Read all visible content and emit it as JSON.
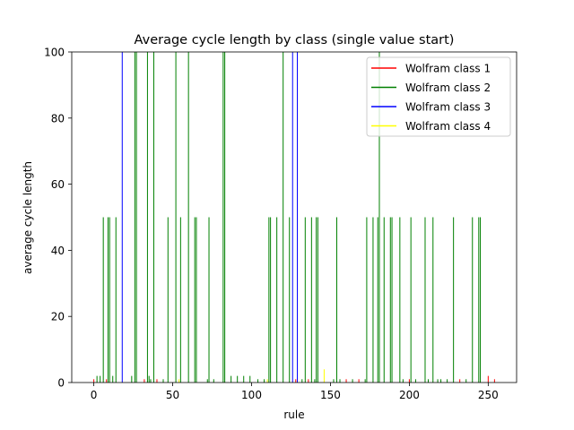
{
  "chart_data": {
    "type": "bar",
    "title": "Average cycle length by class (single value start)",
    "xlabel": "rule",
    "ylabel": "average cycle length",
    "xlim": [
      -14,
      268
    ],
    "ylim": [
      0,
      100
    ],
    "xticks": [
      0,
      50,
      100,
      150,
      200,
      250
    ],
    "yticks": [
      0,
      20,
      40,
      60,
      80,
      100
    ],
    "legend": {
      "position": "top-right",
      "entries": [
        {
          "label": "Wolfram class 1",
          "color": "#ff0000"
        },
        {
          "label": "Wolfram class 2",
          "color": "#008000"
        },
        {
          "label": "Wolfram class 3",
          "color": "#0000ff"
        },
        {
          "label": "Wolfram class 4",
          "color": "#ffff00"
        }
      ]
    },
    "series": [
      {
        "name": "Wolfram class 1",
        "color": "#ff0000",
        "points": [
          [
            0,
            1
          ],
          [
            8,
            1
          ],
          [
            32,
            1
          ],
          [
            40,
            1
          ],
          [
            128,
            1
          ],
          [
            136,
            1
          ],
          [
            160,
            1
          ],
          [
            168,
            1
          ],
          [
            200,
            1
          ],
          [
            232,
            1
          ],
          [
            250,
            2
          ],
          [
            254,
            1
          ]
        ]
      },
      {
        "name": "Wolfram class 2",
        "color": "#008000",
        "points": [
          [
            2,
            2
          ],
          [
            6,
            50
          ],
          [
            9,
            50
          ],
          [
            10,
            50
          ],
          [
            14,
            50
          ],
          [
            24,
            2
          ],
          [
            26,
            100
          ],
          [
            27,
            100
          ],
          [
            34,
            100
          ],
          [
            35,
            2
          ],
          [
            38,
            100
          ],
          [
            47,
            50
          ],
          [
            52,
            100
          ],
          [
            55,
            50
          ],
          [
            60,
            100
          ],
          [
            64,
            50
          ],
          [
            65,
            50
          ],
          [
            73,
            50
          ],
          [
            82,
            100
          ],
          [
            83,
            100
          ],
          [
            87,
            2
          ],
          [
            91,
            2
          ],
          [
            95,
            2
          ],
          [
            99,
            2
          ],
          [
            111,
            50
          ],
          [
            112,
            50
          ],
          [
            116,
            50
          ],
          [
            120,
            100
          ],
          [
            124,
            50
          ],
          [
            134,
            50
          ],
          [
            138,
            50
          ],
          [
            141,
            50
          ],
          [
            142,
            50
          ],
          [
            154,
            50
          ],
          [
            173,
            50
          ],
          [
            177,
            50
          ],
          [
            180,
            50
          ],
          [
            181,
            100
          ],
          [
            184,
            50
          ],
          [
            188,
            50
          ],
          [
            189,
            50
          ],
          [
            194,
            50
          ],
          [
            201,
            50
          ],
          [
            210,
            50
          ],
          [
            215,
            50
          ],
          [
            228,
            50
          ],
          [
            240,
            50
          ],
          [
            244,
            50
          ],
          [
            245,
            50
          ],
          [
            4,
            2
          ],
          [
            12,
            2
          ],
          [
            36,
            1
          ],
          [
            44,
            1
          ],
          [
            72,
            1
          ],
          [
            76,
            1
          ],
          [
            104,
            1
          ],
          [
            108,
            1
          ],
          [
            132,
            1
          ],
          [
            140,
            1
          ],
          [
            152,
            1
          ],
          [
            156,
            1
          ],
          [
            164,
            1
          ],
          [
            172,
            1
          ],
          [
            196,
            1
          ],
          [
            204,
            1
          ],
          [
            212,
            1
          ],
          [
            218,
            1
          ],
          [
            220,
            1
          ],
          [
            224,
            1
          ],
          [
            236,
            1
          ]
        ]
      },
      {
        "name": "Wolfram class 3",
        "color": "#0000ff",
        "points": [
          [
            18,
            100
          ],
          [
            126,
            100
          ],
          [
            129,
            100
          ]
        ]
      },
      {
        "name": "Wolfram class 4",
        "color": "#ffff00",
        "points": [
          [
            54,
            1
          ],
          [
            110,
            1
          ],
          [
            146,
            4
          ]
        ]
      }
    ]
  }
}
